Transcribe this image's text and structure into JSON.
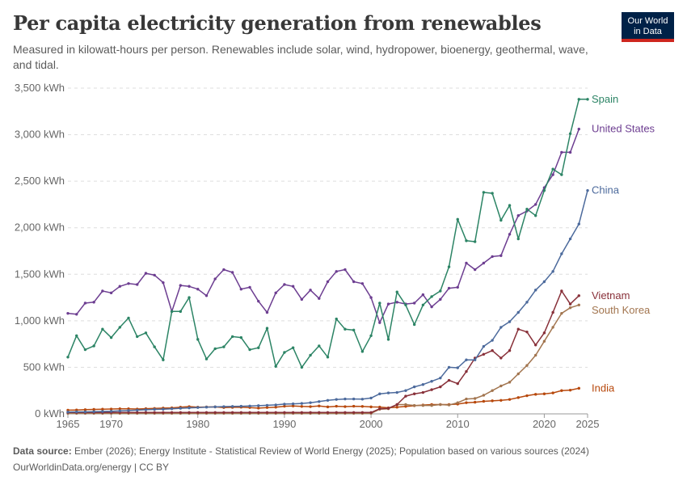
{
  "header": {
    "title": "Per capita electricity generation from renewables",
    "subtitle": "Measured in kilowatt-hours per person. Renewables include solar, wind, hydropower, bioenergy, geothermal, wave, and tidal.",
    "logo_line1": "Our World",
    "logo_line2": "in Data"
  },
  "footer": {
    "source_label": "Data source:",
    "source_text": "Ember (2026); Energy Institute - Statistical Review of World Energy (2025); Population based on various sources (2024)",
    "link_text": "OurWorldinData.org/energy | CC BY"
  },
  "colors": {
    "logo_bg": "#002147",
    "logo_accent": "#ce261e"
  },
  "chart_data": {
    "type": "line",
    "title": "Per capita electricity generation from renewables",
    "xlabel": "",
    "ylabel": "",
    "unit": "kWh",
    "xlim": [
      1965,
      2025
    ],
    "ylim": [
      0,
      3500
    ],
    "y_ticks": [
      0,
      500,
      1000,
      1500,
      2000,
      2500,
      3000,
      3500
    ],
    "y_tick_labels": [
      "0 kWh",
      "500 kWh",
      "1,000 kWh",
      "1,500 kWh",
      "2,000 kWh",
      "2,500 kWh",
      "3,000 kWh",
      "3,500 kWh"
    ],
    "x_ticks": [
      1965,
      1970,
      1980,
      1990,
      2000,
      2010,
      2020,
      2025
    ],
    "grid": "horizontal dashed",
    "legend": "right, labels at line ends",
    "series": [
      {
        "name": "Spain",
        "color": "#2c8465",
        "x": [
          1965,
          1966,
          1967,
          1968,
          1969,
          1970,
          1971,
          1972,
          1973,
          1974,
          1975,
          1976,
          1977,
          1978,
          1979,
          1980,
          1981,
          1982,
          1983,
          1984,
          1985,
          1986,
          1987,
          1988,
          1989,
          1990,
          1991,
          1992,
          1993,
          1994,
          1995,
          1996,
          1997,
          1998,
          1999,
          2000,
          2001,
          2002,
          2003,
          2004,
          2005,
          2006,
          2007,
          2008,
          2009,
          2010,
          2011,
          2012,
          2013,
          2014,
          2015,
          2016,
          2017,
          2018,
          2019,
          2020,
          2021,
          2022,
          2023,
          2024,
          2025
        ],
        "values": [
          610,
          840,
          690,
          730,
          910,
          820,
          930,
          1030,
          830,
          870,
          720,
          580,
          1100,
          1100,
          1250,
          800,
          590,
          700,
          720,
          830,
          820,
          690,
          710,
          920,
          510,
          660,
          710,
          500,
          630,
          730,
          610,
          1020,
          910,
          900,
          670,
          840,
          1190,
          800,
          1310,
          1170,
          960,
          1170,
          1260,
          1320,
          1580,
          2090,
          1860,
          1850,
          2380,
          2370,
          2080,
          2240,
          1880,
          2200,
          2130,
          2400,
          2630,
          2570,
          3010,
          3380,
          3380
        ]
      },
      {
        "name": "United States",
        "color": "#6d3e91",
        "x": [
          1965,
          1966,
          1967,
          1968,
          1969,
          1970,
          1971,
          1972,
          1973,
          1974,
          1975,
          1976,
          1977,
          1978,
          1979,
          1980,
          1981,
          1982,
          1983,
          1984,
          1985,
          1986,
          1987,
          1988,
          1989,
          1990,
          1991,
          1992,
          1993,
          1994,
          1995,
          1996,
          1997,
          1998,
          1999,
          2000,
          2001,
          2002,
          2003,
          2004,
          2005,
          2006,
          2007,
          2008,
          2009,
          2010,
          2011,
          2012,
          2013,
          2014,
          2015,
          2016,
          2017,
          2018,
          2019,
          2020,
          2021,
          2022,
          2023,
          2024,
          2025
        ],
        "values": [
          1080,
          1070,
          1190,
          1200,
          1320,
          1300,
          1370,
          1400,
          1390,
          1510,
          1490,
          1410,
          1100,
          1380,
          1370,
          1340,
          1270,
          1450,
          1550,
          1520,
          1340,
          1360,
          1210,
          1090,
          1300,
          1390,
          1370,
          1230,
          1330,
          1240,
          1420,
          1530,
          1550,
          1420,
          1400,
          1250,
          980,
          1180,
          1200,
          1180,
          1190,
          1280,
          1150,
          1230,
          1350,
          1360,
          1620,
          1550,
          1620,
          1690,
          1700,
          1930,
          2130,
          2180,
          2250,
          2430,
          2570,
          2810,
          2810,
          3060,
          null
        ]
      },
      {
        "name": "China",
        "color": "#4c6a9c",
        "x": [
          1965,
          1966,
          1967,
          1968,
          1969,
          1970,
          1971,
          1972,
          1973,
          1974,
          1975,
          1976,
          1977,
          1978,
          1979,
          1980,
          1981,
          1982,
          1983,
          1984,
          1985,
          1986,
          1987,
          1988,
          1989,
          1990,
          1991,
          1992,
          1993,
          1994,
          1995,
          1996,
          1997,
          1998,
          1999,
          2000,
          2001,
          2002,
          2003,
          2004,
          2005,
          2006,
          2007,
          2008,
          2009,
          2010,
          2011,
          2012,
          2013,
          2014,
          2015,
          2016,
          2017,
          2018,
          2019,
          2020,
          2021,
          2022,
          2023,
          2024,
          2025
        ],
        "values": [
          20,
          22,
          22,
          24,
          26,
          28,
          32,
          36,
          40,
          44,
          48,
          50,
          55,
          60,
          64,
          68,
          72,
          75,
          78,
          80,
          82,
          84,
          88,
          92,
          96,
          105,
          108,
          112,
          120,
          132,
          145,
          155,
          160,
          160,
          158,
          170,
          215,
          225,
          230,
          250,
          290,
          315,
          350,
          385,
          500,
          495,
          580,
          580,
          725,
          790,
          930,
          990,
          1090,
          1200,
          1330,
          1420,
          1530,
          1720,
          1880,
          2040,
          2400
        ]
      },
      {
        "name": "Vietnam",
        "color": "#883039",
        "x": [
          1965,
          1966,
          1967,
          1968,
          1969,
          1970,
          1971,
          1972,
          1973,
          1974,
          1975,
          1976,
          1977,
          1978,
          1979,
          1980,
          1981,
          1982,
          1983,
          1984,
          1985,
          1986,
          1987,
          1988,
          1989,
          1990,
          1991,
          1992,
          1993,
          1994,
          1995,
          1996,
          1997,
          1998,
          1999,
          2000,
          2001,
          2002,
          2003,
          2004,
          2005,
          2006,
          2007,
          2008,
          2009,
          2010,
          2011,
          2012,
          2013,
          2014,
          2015,
          2016,
          2017,
          2018,
          2019,
          2020,
          2021,
          2022,
          2023,
          2024,
          2025
        ],
        "values": [
          15,
          15,
          15,
          15,
          15,
          15,
          15,
          15,
          15,
          15,
          15,
          15,
          15,
          15,
          15,
          15,
          15,
          15,
          15,
          15,
          15,
          15,
          15,
          15,
          15,
          15,
          15,
          15,
          15,
          15,
          15,
          15,
          15,
          15,
          15,
          15,
          55,
          60,
          100,
          190,
          215,
          230,
          260,
          290,
          360,
          325,
          455,
          600,
          640,
          680,
          600,
          680,
          910,
          880,
          740,
          870,
          1090,
          1320,
          1180,
          1270,
          null
        ]
      },
      {
        "name": "South Korea",
        "color": "#a2754f",
        "x": [
          1965,
          1966,
          1967,
          1968,
          1969,
          1970,
          1971,
          1972,
          1973,
          1974,
          1975,
          1976,
          1977,
          1978,
          1979,
          1980,
          1981,
          1982,
          1983,
          1984,
          1985,
          1986,
          1987,
          1988,
          1989,
          1990,
          1991,
          1992,
          1993,
          1994,
          1995,
          1996,
          1997,
          1998,
          1999,
          2000,
          2001,
          2002,
          2003,
          2004,
          2005,
          2006,
          2007,
          2008,
          2009,
          2010,
          2011,
          2012,
          2013,
          2014,
          2015,
          2016,
          2017,
          2018,
          2019,
          2020,
          2021,
          2022,
          2023,
          2024,
          2025
        ],
        "values": [
          5,
          5,
          5,
          5,
          5,
          5,
          5,
          5,
          5,
          5,
          5,
          5,
          5,
          5,
          5,
          5,
          5,
          5,
          5,
          5,
          5,
          5,
          5,
          5,
          5,
          5,
          5,
          5,
          5,
          5,
          5,
          5,
          5,
          5,
          5,
          5,
          50,
          55,
          100,
          100,
          90,
          90,
          90,
          100,
          95,
          120,
          160,
          165,
          200,
          250,
          300,
          340,
          430,
          520,
          630,
          780,
          930,
          1080,
          1140,
          1170,
          null
        ]
      },
      {
        "name": "India",
        "color": "#b7480c",
        "x": [
          1965,
          1966,
          1967,
          1968,
          1969,
          1970,
          1971,
          1972,
          1973,
          1974,
          1975,
          1976,
          1977,
          1978,
          1979,
          1980,
          1981,
          1982,
          1983,
          1984,
          1985,
          1986,
          1987,
          1988,
          1989,
          1990,
          1991,
          1992,
          1993,
          1994,
          1995,
          1996,
          1997,
          1998,
          1999,
          2000,
          2001,
          2002,
          2003,
          2004,
          2005,
          2006,
          2007,
          2008,
          2009,
          2010,
          2011,
          2012,
          2013,
          2014,
          2015,
          2016,
          2017,
          2018,
          2019,
          2020,
          2021,
          2022,
          2023,
          2024,
          2025
        ],
        "values": [
          40,
          42,
          45,
          48,
          50,
          52,
          55,
          55,
          52,
          56,
          58,
          62,
          64,
          72,
          78,
          72,
          74,
          75,
          68,
          70,
          72,
          68,
          62,
          68,
          72,
          82,
          85,
          80,
          78,
          85,
          75,
          82,
          78,
          82,
          80,
          75,
          73,
          65,
          72,
          80,
          88,
          95,
          100,
          100,
          100,
          105,
          120,
          125,
          135,
          140,
          145,
          155,
          175,
          195,
          210,
          215,
          225,
          250,
          255,
          275,
          null
        ]
      }
    ]
  }
}
